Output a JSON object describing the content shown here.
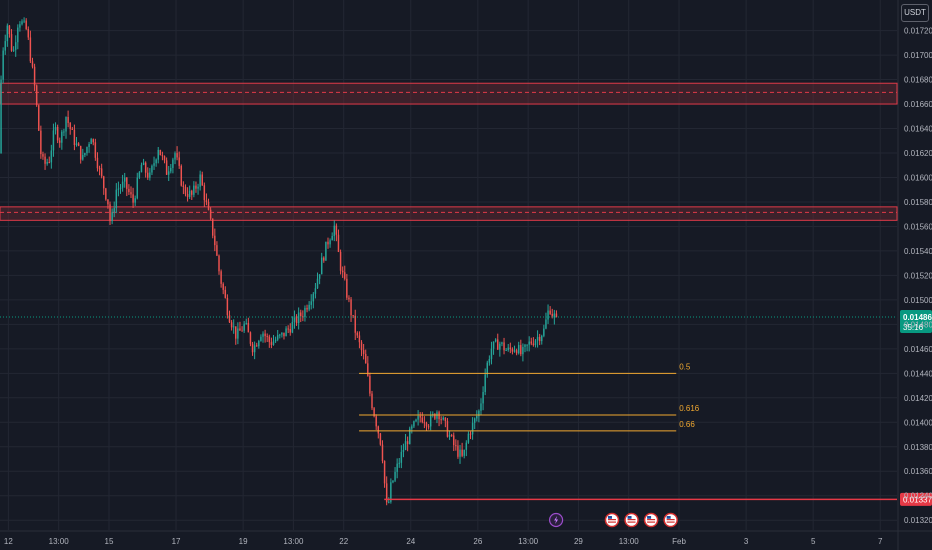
{
  "header": {
    "currency": "USDT"
  },
  "colors": {
    "background": "#161a25",
    "grid": "#232733",
    "up": "#26a69a",
    "down": "#ef5350",
    "zone_fill": "#6b2a33",
    "zone_border": "#e03a48",
    "fib": "#f0a830",
    "support": "#e53946",
    "price_tag": "#089981",
    "axis_text": "#b2b5be"
  },
  "chart_data": {
    "type": "candlestick",
    "ylim": [
      0.01312,
      0.01745
    ],
    "y_ticks": [
      "0.01320",
      "0.01340",
      "0.01360",
      "0.01380",
      "0.01400",
      "0.01420",
      "0.01440",
      "0.01460",
      "0.01480",
      "0.01500",
      "0.01520",
      "0.01540",
      "0.01560",
      "0.01580",
      "0.01600",
      "0.01620",
      "0.01640",
      "0.01660",
      "0.01680",
      "0.01700",
      "0.01720"
    ],
    "x_ticks": [
      "12",
      "13:00",
      "15",
      "17",
      "19",
      "13:00",
      "22",
      "24",
      "26",
      "13:00",
      "29",
      "13:00",
      "Feb",
      "3",
      "5",
      "7"
    ],
    "x_range": [
      "Jan 11 18:00",
      "Feb 7 12:00"
    ],
    "current_price": {
      "value": 0.01486,
      "label": "0.01486",
      "countdown": "35:16"
    },
    "support_line": {
      "value": 0.01337,
      "label": "0.01337",
      "from": "Jan 23 05:00"
    },
    "zones": [
      {
        "name": "upper-resistance-zone",
        "top": 0.01677,
        "bottom": 0.0166,
        "mid": 0.016695
      },
      {
        "name": "lower-resistance-zone",
        "top": 0.01576,
        "bottom": 0.01565,
        "mid": 0.015715
      }
    ],
    "fib_levels": [
      {
        "label": "0.5",
        "value": 0.0144,
        "from": "Jan 22 11:00",
        "to": "Jan 31 22:00"
      },
      {
        "label": "0.616",
        "value": 0.01406,
        "from": "Jan 22 11:00",
        "to": "Jan 31 22:00"
      },
      {
        "label": "0.66",
        "value": 0.01393,
        "from": "Jan 22 11:00",
        "to": "Jan 31 22:00"
      }
    ],
    "price_path": [
      [
        "Jan 11 18:00",
        0.0162
      ],
      [
        "Jan 11 20:00",
        0.017
      ],
      [
        "Jan 12 00:00",
        0.01725
      ],
      [
        "Jan 12 04:00",
        0.017
      ],
      [
        "Jan 12 08:00",
        0.0173
      ],
      [
        "Jan 12 14:00",
        0.0172
      ],
      [
        "Jan 12 20:00",
        0.0167
      ],
      [
        "Jan 13 00:00",
        0.0162
      ],
      [
        "Jan 13 02:00",
        0.0161
      ],
      [
        "Jan 13 06:00",
        0.01615
      ],
      [
        "Jan 13 10:00",
        0.0164
      ],
      [
        "Jan 13 14:00",
        0.0163
      ],
      [
        "Jan 13 18:00",
        0.0165
      ],
      [
        "Jan 14 00:00",
        0.0163
      ],
      [
        "Jan 14 06:00",
        0.01615
      ],
      [
        "Jan 14 12:00",
        0.01635
      ],
      [
        "Jan 14 18:00",
        0.01605
      ],
      [
        "Jan 15 00:00",
        0.0158
      ],
      [
        "Jan 15 02:00",
        0.0156
      ],
      [
        "Jan 15 06:00",
        0.0159
      ],
      [
        "Jan 15 12:00",
        0.01595
      ],
      [
        "Jan 15 18:00",
        0.0158
      ],
      [
        "Jan 16 00:00",
        0.0161
      ],
      [
        "Jan 16 06:00",
        0.016
      ],
      [
        "Jan 16 12:00",
        0.01625
      ],
      [
        "Jan 16 18:00",
        0.01605
      ],
      [
        "Jan 17 00:00",
        0.0162
      ],
      [
        "Jan 17 06:00",
        0.0159
      ],
      [
        "Jan 17 12:00",
        0.01585
      ],
      [
        "Jan 17 18:00",
        0.016
      ],
      [
        "Jan 18 00:00",
        0.0157
      ],
      [
        "Jan 18 04:00",
        0.0155
      ],
      [
        "Jan 18 08:00",
        0.0152
      ],
      [
        "Jan 18 14:00",
        0.0149
      ],
      [
        "Jan 18 20:00",
        0.0147
      ],
      [
        "Jan 19 02:00",
        0.0148
      ],
      [
        "Jan 19 08:00",
        0.0146
      ],
      [
        "Jan 19 14:00",
        0.01475
      ],
      [
        "Jan 19 20:00",
        0.01465
      ],
      [
        "Jan 20 04:00",
        0.0147
      ],
      [
        "Jan 20 12:00",
        0.0148
      ],
      [
        "Jan 20 20:00",
        0.0149
      ],
      [
        "Jan 21 04:00",
        0.0151
      ],
      [
        "Jan 21 10:00",
        0.01535
      ],
      [
        "Jan 21 14:00",
        0.0155
      ],
      [
        "Jan 21 18:00",
        0.0156
      ],
      [
        "Jan 21 22:00",
        0.0153
      ],
      [
        "Jan 22 04:00",
        0.015
      ],
      [
        "Jan 22 10:00",
        0.0147
      ],
      [
        "Jan 22 16:00",
        0.0145
      ],
      [
        "Jan 22 20:00",
        0.0142
      ],
      [
        "Jan 23 00:00",
        0.014
      ],
      [
        "Jan 23 04:00",
        0.0138
      ],
      [
        "Jan 23 06:00",
        0.0135
      ],
      [
        "Jan 23 08:00",
        0.01325
      ],
      [
        "Jan 23 10:00",
        0.01345
      ],
      [
        "Jan 23 14:00",
        0.0136
      ],
      [
        "Jan 23 20:00",
        0.0138
      ],
      [
        "Jan 24 02:00",
        0.01395
      ],
      [
        "Jan 24 08:00",
        0.01405
      ],
      [
        "Jan 24 14:00",
        0.014
      ],
      [
        "Jan 24 20:00",
        0.0141
      ],
      [
        "Jan 25 02:00",
        0.01395
      ],
      [
        "Jan 25 08:00",
        0.0138
      ],
      [
        "Jan 25 14:00",
        0.0137
      ],
      [
        "Jan 25 18:00",
        0.0139
      ],
      [
        "Jan 25 22:00",
        0.014
      ],
      [
        "Jan 26 02:00",
        0.0141
      ],
      [
        "Jan 26 06:00",
        0.0144
      ],
      [
        "Jan 26 10:00",
        0.0146
      ],
      [
        "Jan 26 16:00",
        0.01465
      ],
      [
        "Jan 26 22:00",
        0.01458
      ],
      [
        "Jan 27 04:00",
        0.01462
      ],
      [
        "Jan 27 08:00",
        0.01455
      ],
      [
        "Jan 27 14:00",
        0.01465
      ],
      [
        "Jan 27 20:00",
        0.0147
      ],
      [
        "Jan 28 00:00",
        0.01475
      ],
      [
        "Jan 28 04:00",
        0.01495
      ],
      [
        "Jan 28 06:00",
        0.01488
      ],
      [
        "Jan 28 08:00",
        0.01486
      ]
    ],
    "event_markers": [
      {
        "icon": "lightning-icon",
        "time": "Jan 28 08:00"
      },
      {
        "icon": "us-flag-icon",
        "time": "Jan 30 00:00"
      },
      {
        "icon": "us-flag-icon",
        "time": "Jan 30 14:00"
      },
      {
        "icon": "us-flag-icon",
        "time": "Jan 31 04:00"
      },
      {
        "icon": "us-flag-icon",
        "time": "Jan 31 18:00"
      }
    ]
  }
}
